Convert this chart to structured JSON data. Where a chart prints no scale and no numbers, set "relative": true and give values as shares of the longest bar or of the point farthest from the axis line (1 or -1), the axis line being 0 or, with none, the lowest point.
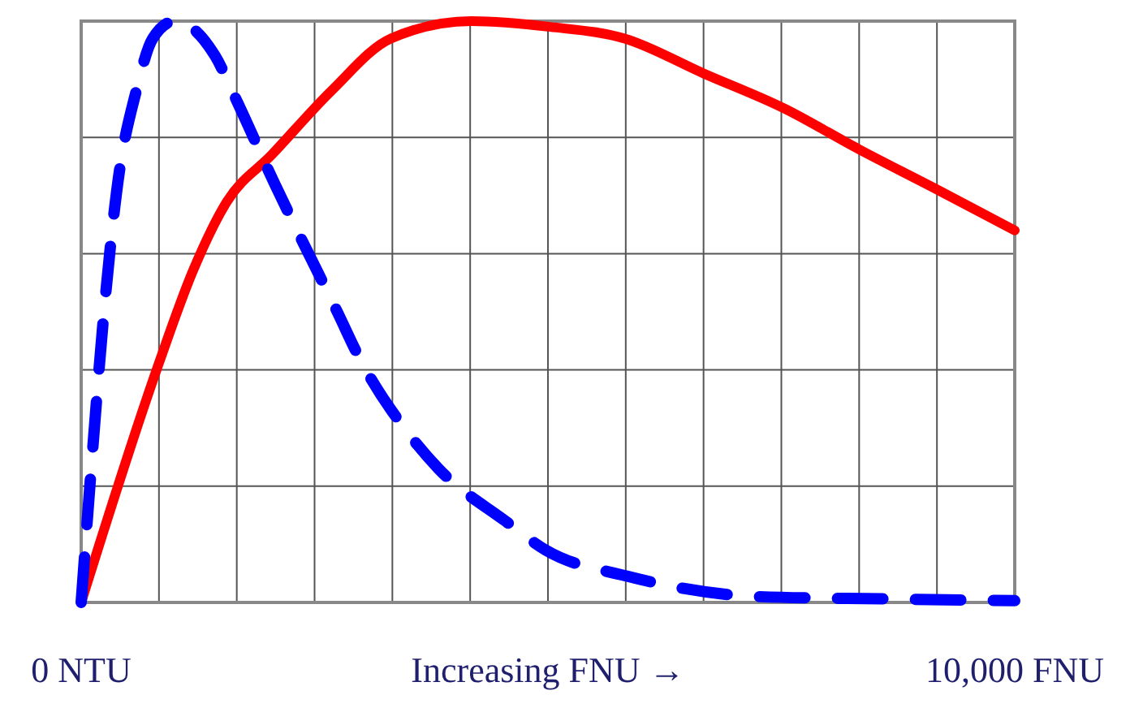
{
  "chart_data": {
    "type": "line",
    "relative": true,
    "xlabel": "Increasing FNU →",
    "xlim": [
      0,
      10000
    ],
    "xticks": [
      {
        "value": 0,
        "label": "0 NTU"
      },
      {
        "value": 833.3,
        "label": null
      },
      {
        "value": 1666.7,
        "label": null
      },
      {
        "value": 2500,
        "label": null
      },
      {
        "value": 3333.3,
        "label": null
      },
      {
        "value": 4166.7,
        "label": null
      },
      {
        "value": 5000,
        "label": null
      },
      {
        "value": 5833.3,
        "label": null
      },
      {
        "value": 6666.7,
        "label": null
      },
      {
        "value": 7500,
        "label": null
      },
      {
        "value": 8333.3,
        "label": null
      },
      {
        "value": 9166.7,
        "label": null
      },
      {
        "value": 10000,
        "label": "10,000 FNU"
      }
    ],
    "grid": true,
    "tick_labels": "x",
    "series": [
      {
        "color": "#ff0000",
        "line_style": "solid",
        "x": [
          0,
          829,
          1196,
          1563,
          2041,
          2679,
          3317,
          4179,
          5024,
          5821,
          6667,
          7528,
          8325,
          9171,
          10000
        ],
        "values": [
          0,
          0.41,
          0.57,
          0.69,
          0.77,
          0.88,
          0.97,
          1.0,
          0.99,
          0.97,
          0.91,
          0.85,
          0.78,
          0.71,
          0.64
        ]
      },
      {
        "color": "#0000ff",
        "line_style": "dashed",
        "x": [
          0,
          112,
          239,
          399,
          590,
          766,
          1005,
          1435,
          1675,
          2073,
          2313,
          2743,
          2982,
          3509,
          3828,
          4545,
          4976,
          5853,
          7257,
          8644,
          10000
        ],
        "values": [
          0,
          0.24,
          0.49,
          0.73,
          0.88,
          0.97,
          1.0,
          0.94,
          0.86,
          0.72,
          0.64,
          0.5,
          0.42,
          0.29,
          0.23,
          0.14,
          0.09,
          0.045,
          0.01,
          0.006,
          0.003
        ]
      }
    ]
  }
}
